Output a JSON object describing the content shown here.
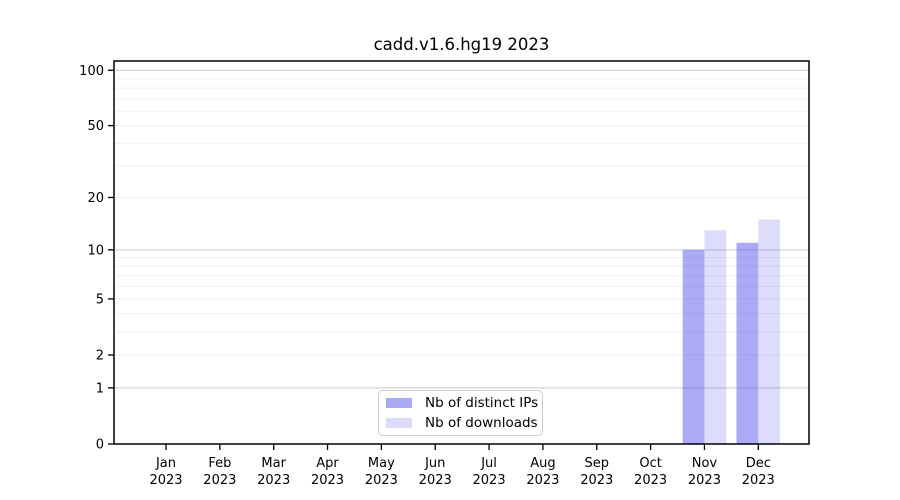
{
  "chart_data": {
    "type": "bar",
    "title": "cadd.v1.6.hg19 2023",
    "categories": [
      "Jan",
      "Feb",
      "Mar",
      "Apr",
      "May",
      "Jun",
      "Jul",
      "Aug",
      "Sep",
      "Oct",
      "Nov",
      "Dec"
    ],
    "x_year_label": "2023",
    "series": [
      {
        "name": "Nb of distinct IPs",
        "color": "#a9a9f4",
        "fill": "rgba(85,85,235,0.5)",
        "values": [
          0,
          0,
          0,
          0,
          0,
          0,
          0,
          0,
          0,
          0,
          10,
          11
        ]
      },
      {
        "name": "Nb of downloads",
        "color": "#dcdcfa",
        "fill": "rgba(85,85,235,0.2)",
        "values": [
          0,
          0,
          0,
          0,
          0,
          0,
          0,
          0,
          0,
          0,
          13,
          15
        ]
      }
    ],
    "xlabel": "",
    "ylabel": "",
    "y_scale": "log1p",
    "y_ticks": [
      0,
      1,
      2,
      5,
      10,
      20,
      50,
      100
    ],
    "y_major_gridlines": [
      1,
      10,
      100
    ],
    "y_minor_gridlines": [
      2,
      3,
      4,
      5,
      6,
      7,
      8,
      9,
      20,
      30,
      40,
      50,
      60,
      70,
      80,
      90
    ],
    "ylim": [
      0,
      112
    ],
    "grid": true,
    "legend_position": "lower center"
  }
}
